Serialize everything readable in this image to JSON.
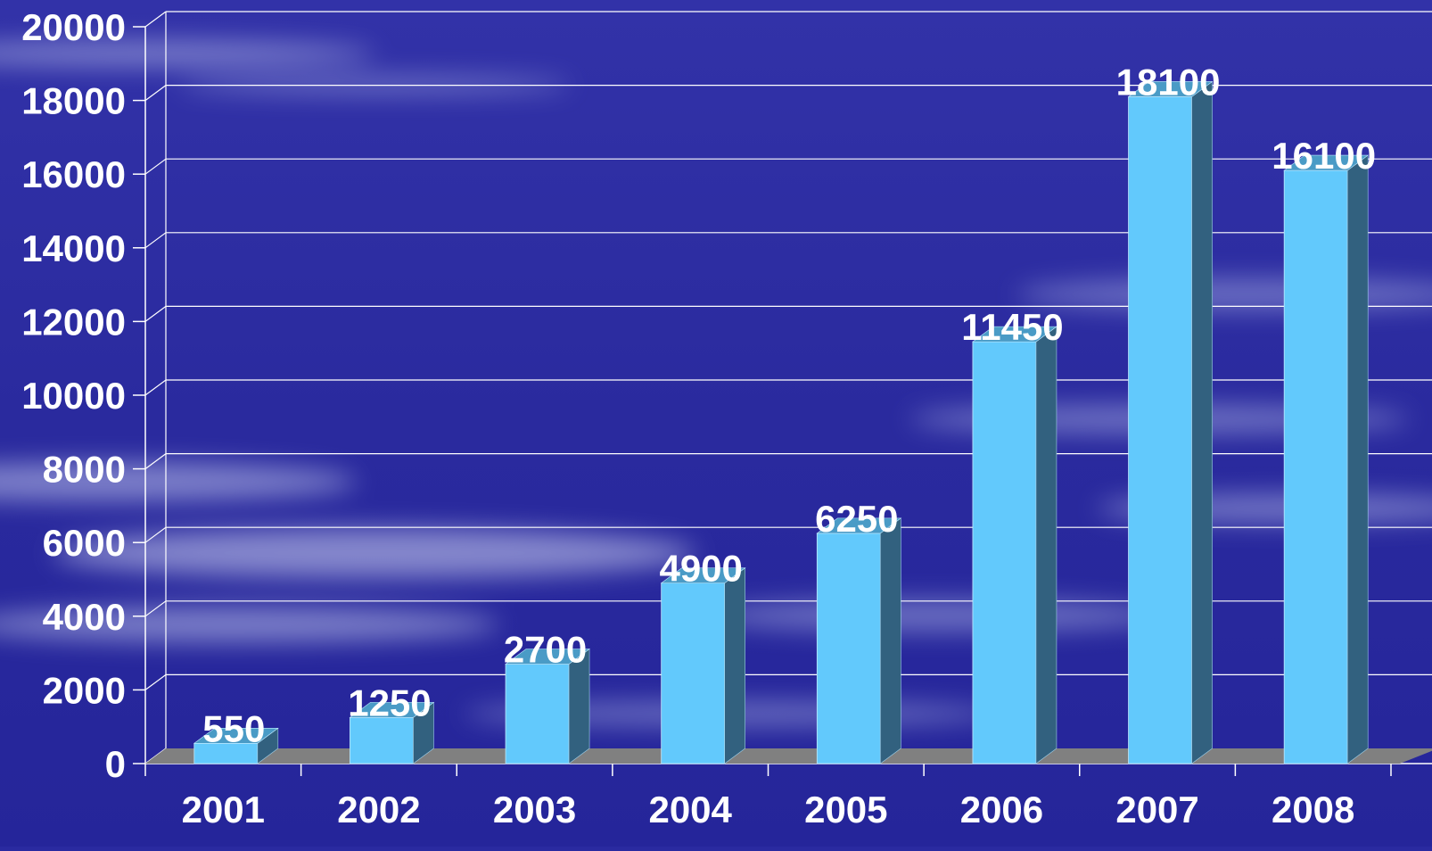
{
  "colors": {
    "background": "#2a2aa0",
    "bar_front": "#62c9fc",
    "bar_side": "#32617f",
    "bar_top": "#4a9bc6",
    "floor": "#808080",
    "grid": "#ffffff",
    "text": "#ffffff"
  },
  "chart_data": {
    "type": "bar",
    "style": "3d-column",
    "categories": [
      "2001",
      "2002",
      "2003",
      "2004",
      "2005",
      "2006",
      "2007",
      "2008"
    ],
    "values": [
      550,
      1250,
      2700,
      4900,
      6250,
      11450,
      18100,
      16100
    ],
    "data_labels": [
      "550",
      "1250",
      "2700",
      "4900",
      "6250",
      "11450",
      "18100",
      "16100"
    ],
    "y_ticks": [
      "0",
      "2000",
      "4000",
      "6000",
      "8000",
      "10000",
      "12000",
      "14000",
      "16000",
      "18000",
      "20000"
    ],
    "ylim": [
      0,
      20000
    ],
    "grid": true,
    "title": "",
    "xlabel": "",
    "ylabel": ""
  }
}
